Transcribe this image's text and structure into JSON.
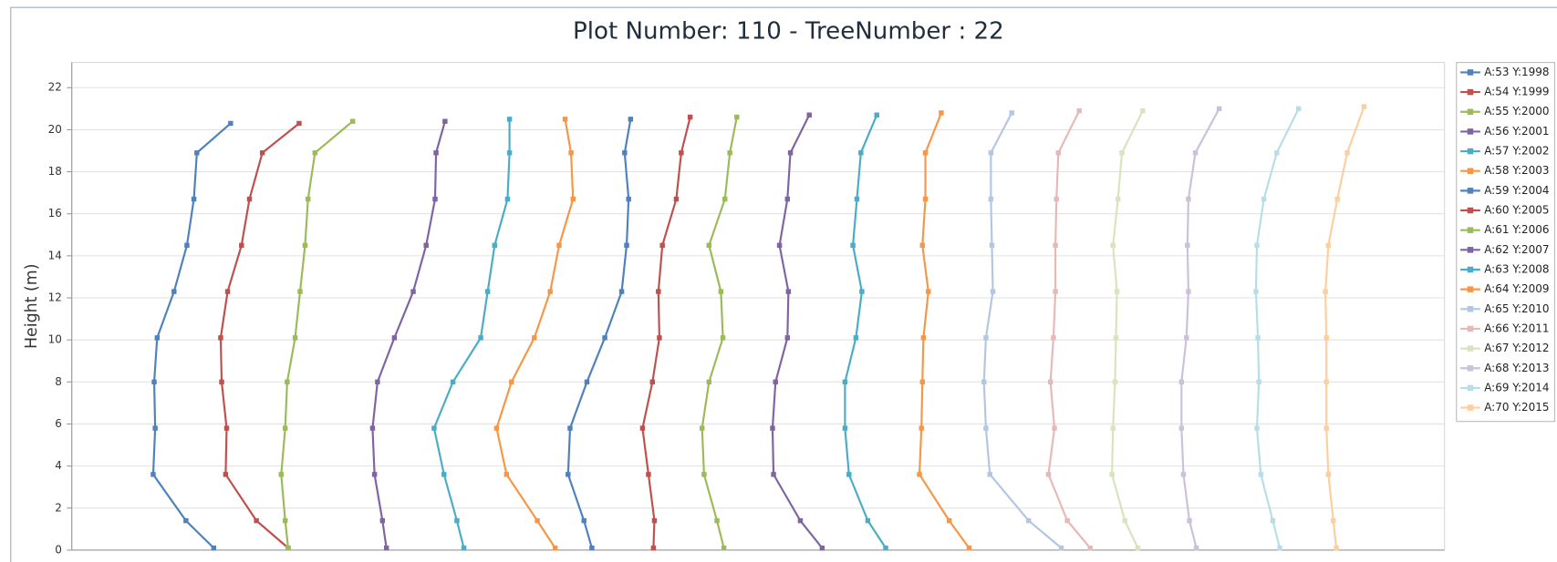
{
  "chart_data": {
    "type": "line",
    "title": "Plot Number: 110 - TreeNumber : 22",
    "y_label": "Height (m)",
    "xlim": [
      0,
      1383
    ],
    "ylim": [
      0,
      23.2
    ],
    "yticks": [
      0,
      2,
      4,
      6,
      8,
      10,
      12,
      14,
      16,
      18,
      20,
      22
    ],
    "grid": true,
    "legend": "right",
    "series": [
      {
        "name": "A:53 Y:1998",
        "color": "#4f81bd",
        "x": [
          143,
          115,
          82,
          84,
          83,
          86,
          103,
          116,
          123,
          126,
          160
        ],
        "values": [
          0.1,
          1.4,
          3.6,
          5.8,
          8,
          10.1,
          12.3,
          14.5,
          16.7,
          18.9,
          20.3
        ]
      },
      {
        "name": "A:54 Y:1999",
        "color": "#c0504d",
        "x": [
          218,
          186,
          155,
          156,
          151,
          150,
          157,
          171,
          179,
          192,
          229
        ],
        "values": [
          0.1,
          1.4,
          3.6,
          5.8,
          8,
          10.1,
          12.3,
          14.5,
          16.7,
          18.9,
          20.3
        ]
      },
      {
        "name": "A:55 Y:2000",
        "color": "#9bbb59",
        "x": [
          218,
          215,
          211,
          215,
          217,
          225,
          230,
          235,
          238,
          245,
          283
        ],
        "values": [
          0.1,
          1.4,
          3.6,
          5.8,
          8,
          10.1,
          12.3,
          14.5,
          16.7,
          18.9,
          20.4
        ]
      },
      {
        "name": "A:56 Y:2001",
        "color": "#8064a2",
        "x": [
          317,
          313,
          305,
          303,
          308,
          325,
          344,
          357,
          366,
          367,
          376
        ],
        "values": [
          0.1,
          1.4,
          3.6,
          5.8,
          8,
          10.1,
          12.3,
          14.5,
          16.7,
          18.9,
          20.4
        ]
      },
      {
        "name": "A:57 Y:2002",
        "color": "#4bacc6",
        "x": [
          395,
          388,
          375,
          365,
          384,
          412,
          419,
          426,
          439,
          441,
          441
        ],
        "values": [
          0.1,
          1.4,
          3.6,
          5.8,
          8,
          10.1,
          12.3,
          14.5,
          16.7,
          18.9,
          20.5
        ]
      },
      {
        "name": "A:58 Y:2003",
        "color": "#f79646",
        "x": [
          487,
          469,
          438,
          428,
          443,
          466,
          482,
          491,
          505,
          503,
          497
        ],
        "values": [
          0.1,
          1.4,
          3.6,
          5.8,
          8,
          10.1,
          12.3,
          14.5,
          16.7,
          18.9,
          20.5
        ]
      },
      {
        "name": "A:59 Y:2004",
        "color": "#4f81bd",
        "x": [
          524,
          516,
          500,
          502,
          519,
          537,
          554,
          559,
          561,
          557,
          563
        ],
        "values": [
          0.1,
          1.4,
          3.6,
          5.8,
          8,
          10.1,
          12.3,
          14.5,
          16.7,
          18.9,
          20.5
        ]
      },
      {
        "name": "A:60 Y:2005",
        "color": "#c0504d",
        "x": [
          586,
          587,
          581,
          575,
          585,
          592,
          591,
          595,
          609,
          614,
          623
        ],
        "values": [
          0.1,
          1.4,
          3.6,
          5.8,
          8,
          10.1,
          12.3,
          14.5,
          16.7,
          18.9,
          20.6
        ]
      },
      {
        "name": "A:61 Y:2006",
        "color": "#9bbb59",
        "x": [
          657,
          650,
          637,
          635,
          642,
          656,
          654,
          642,
          658,
          663,
          670
        ],
        "values": [
          0.1,
          1.4,
          3.6,
          5.8,
          8,
          10.1,
          12.3,
          14.5,
          16.7,
          18.9,
          20.6
        ]
      },
      {
        "name": "A:62 Y:2007",
        "color": "#8064a2",
        "x": [
          756,
          734,
          707,
          706,
          709,
          721,
          722,
          713,
          721,
          724,
          743
        ],
        "values": [
          0.1,
          1.4,
          3.6,
          5.8,
          8,
          10.1,
          12.3,
          14.5,
          16.7,
          18.9,
          20.7
        ]
      },
      {
        "name": "A:63 Y:2008",
        "color": "#4bacc6",
        "x": [
          820,
          802,
          783,
          779,
          779,
          790,
          796,
          787,
          791,
          795,
          811
        ],
        "values": [
          0.1,
          1.4,
          3.6,
          5.8,
          8,
          10.1,
          12.3,
          14.5,
          16.7,
          18.9,
          20.7
        ]
      },
      {
        "name": "A:64 Y:2009",
        "color": "#f79646",
        "x": [
          904,
          884,
          854,
          856,
          857,
          858,
          863,
          857,
          860,
          860,
          876
        ],
        "values": [
          0.1,
          1.4,
          3.6,
          5.8,
          8,
          10.1,
          12.3,
          14.5,
          16.7,
          18.9,
          20.8
        ]
      },
      {
        "name": "A:65 Y:2010",
        "color": "#b3c6e4",
        "x": [
          997,
          964,
          925,
          921,
          919,
          921,
          928,
          927,
          926,
          926,
          947
        ],
        "values": [
          0.1,
          1.4,
          3.6,
          5.8,
          8,
          10.1,
          12.3,
          14.5,
          16.7,
          18.9,
          20.8
        ]
      },
      {
        "name": "A:66 Y:2011",
        "color": "#e6b9b8",
        "x": [
          1026,
          1003,
          984,
          990,
          986,
          989,
          991,
          991,
          992,
          994,
          1015
        ],
        "values": [
          0.1,
          1.4,
          3.6,
          5.8,
          8,
          10.1,
          12.3,
          14.5,
          16.7,
          18.9,
          20.9
        ]
      },
      {
        "name": "A:67 Y:2012",
        "color": "#d7e4bd",
        "x": [
          1074,
          1061,
          1048,
          1049,
          1051,
          1052,
          1053,
          1049,
          1054,
          1058,
          1079
        ],
        "values": [
          0.1,
          1.4,
          3.6,
          5.8,
          8,
          10.1,
          12.3,
          14.5,
          16.7,
          18.9,
          20.9
        ]
      },
      {
        "name": "A:68 Y:2013",
        "color": "#ccc1da",
        "x": [
          1133,
          1126,
          1120,
          1118,
          1118,
          1123,
          1125,
          1124,
          1125,
          1132,
          1156
        ],
        "values": [
          0.1,
          1.4,
          3.6,
          5.8,
          8,
          10.1,
          12.3,
          14.5,
          16.7,
          18.9,
          21.0
        ]
      },
      {
        "name": "A:69 Y:2014",
        "color": "#b7dee8",
        "x": [
          1217,
          1210,
          1198,
          1194,
          1196,
          1195,
          1193,
          1194,
          1201,
          1214,
          1236
        ],
        "values": [
          0.1,
          1.4,
          3.6,
          5.8,
          8,
          10.1,
          12.3,
          14.5,
          16.7,
          18.9,
          21.0
        ]
      },
      {
        "name": "A:70 Y:2015",
        "color": "#fbcf9f",
        "x": [
          1274,
          1271,
          1266,
          1264,
          1264,
          1264,
          1263,
          1266,
          1275,
          1285,
          1302
        ],
        "values": [
          0.1,
          1.4,
          3.6,
          5.8,
          8,
          10.1,
          12.3,
          14.5,
          16.7,
          18.9,
          21.1
        ]
      }
    ]
  }
}
